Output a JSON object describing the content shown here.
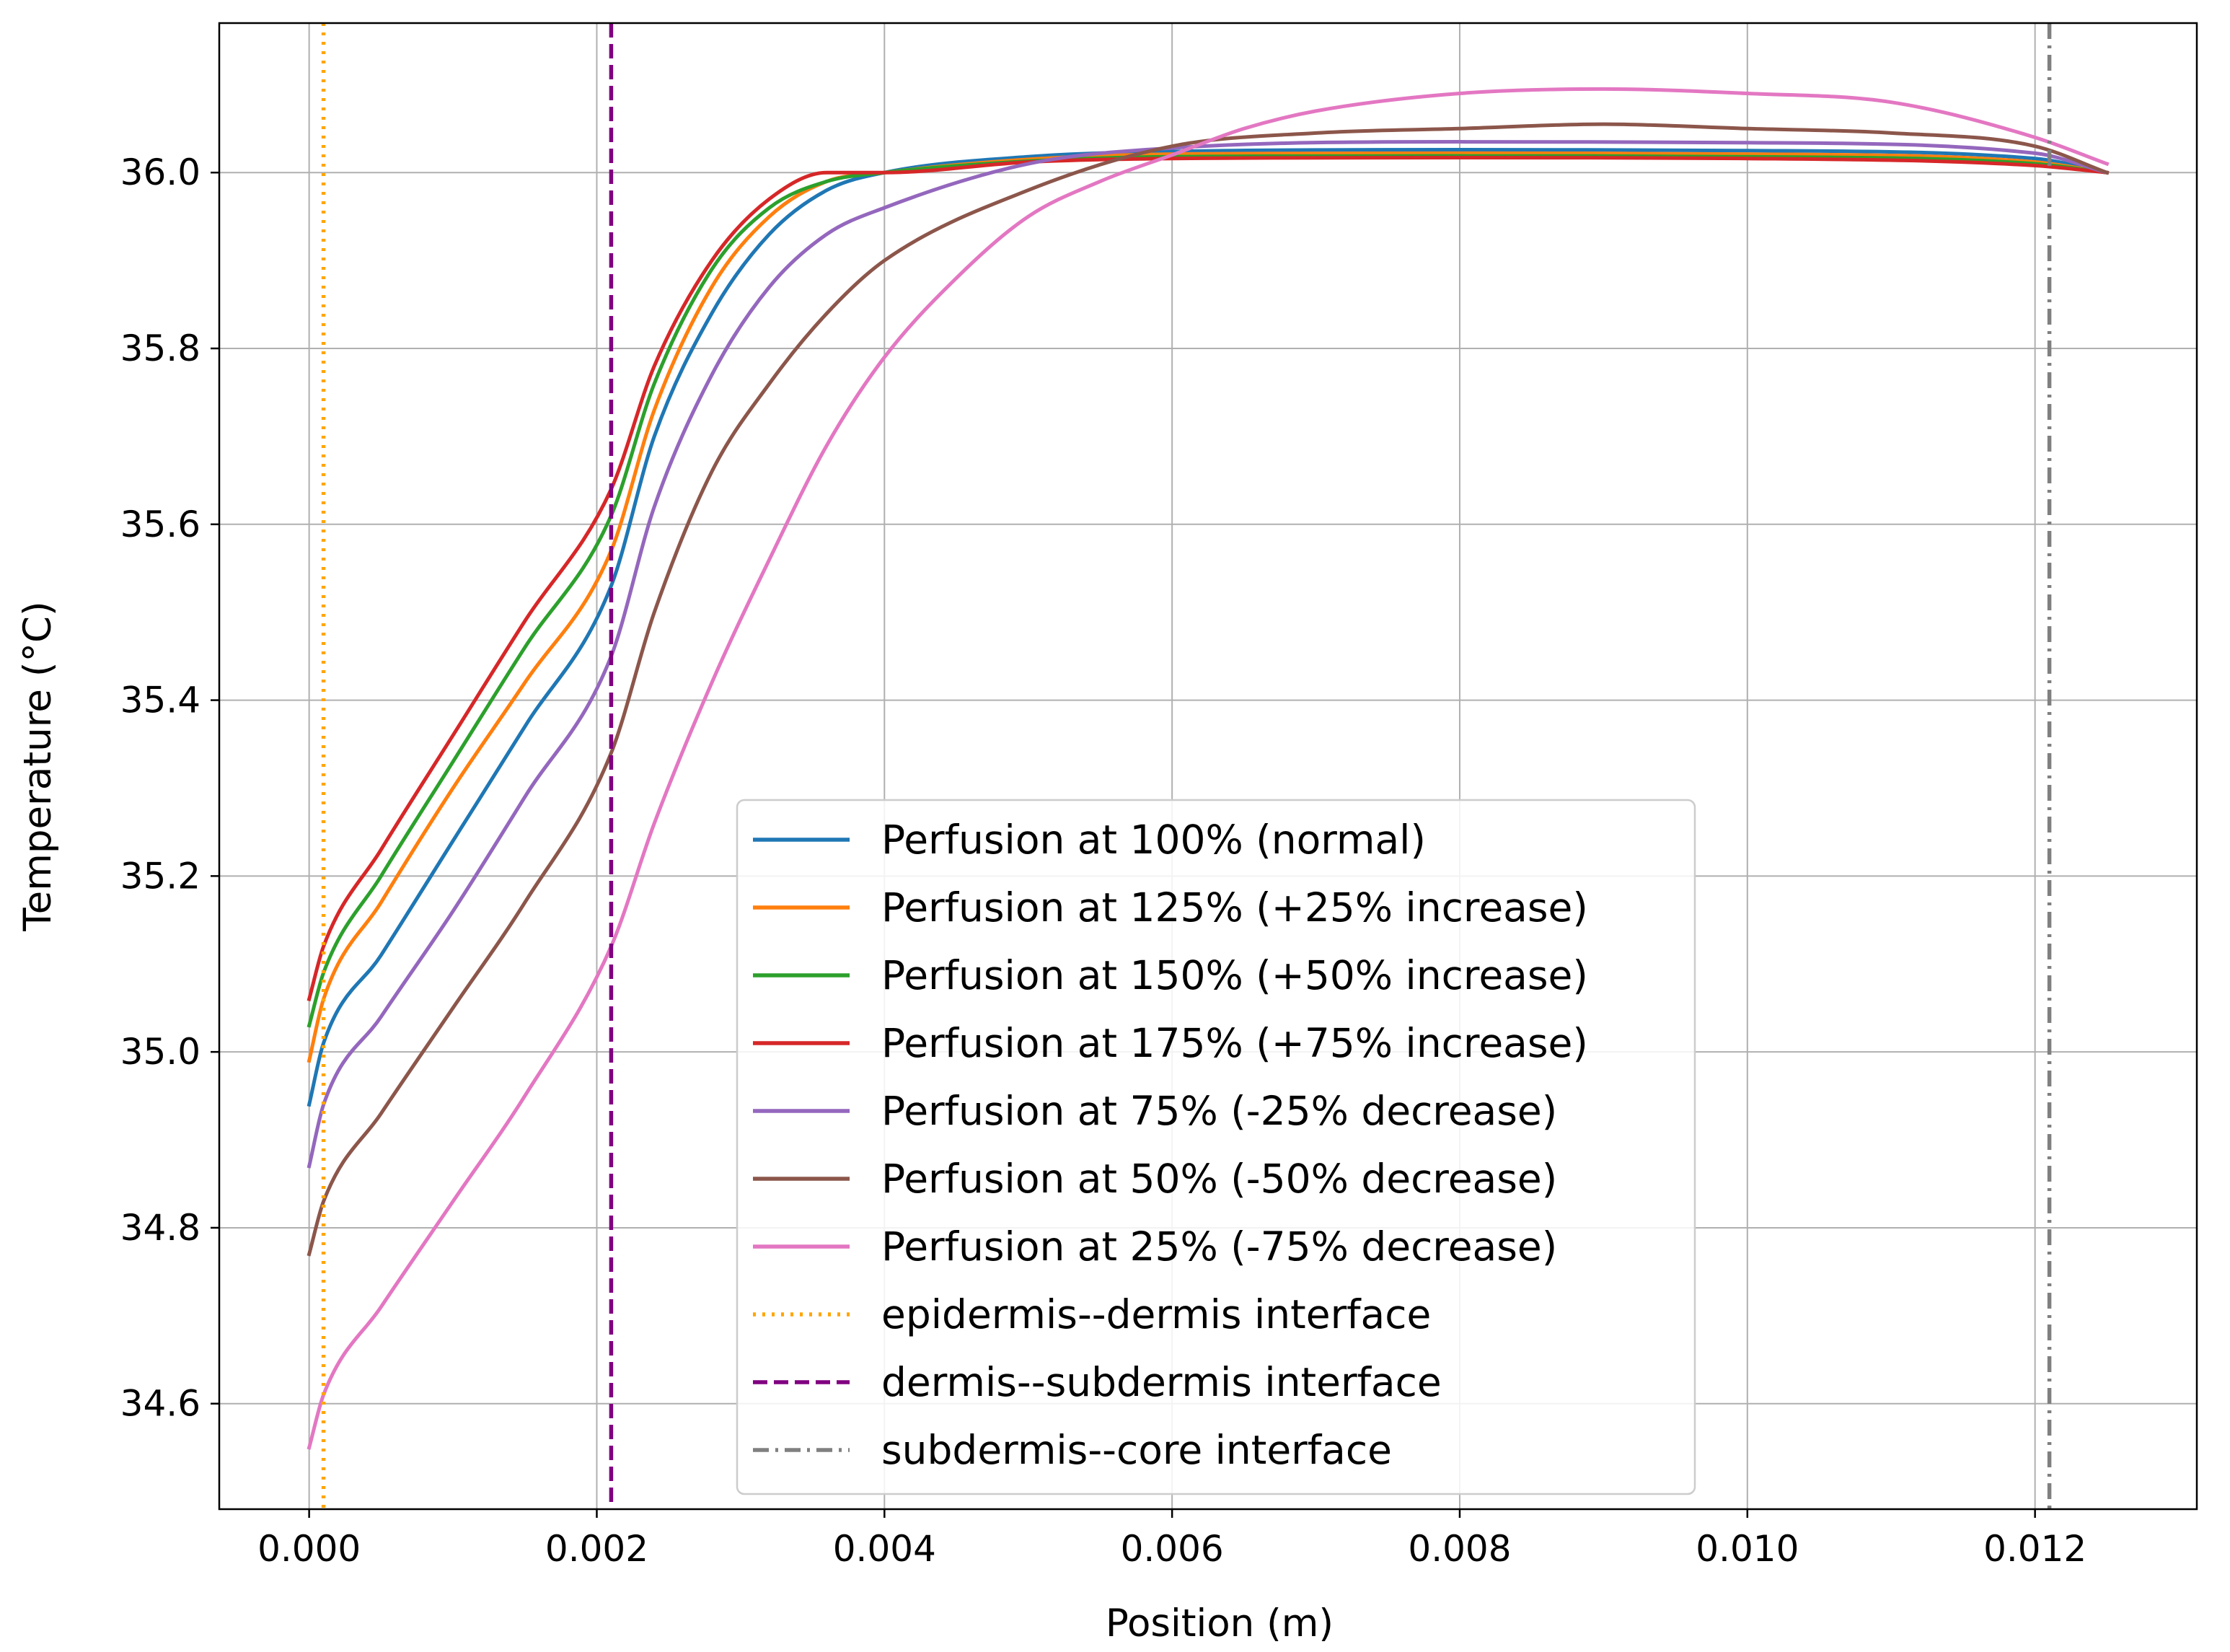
{
  "chart_data": {
    "type": "line",
    "title": "",
    "xlabel": "Position (m)",
    "ylabel": "Temperature (°C)",
    "xlim": [
      -0.000625,
      0.013125
    ],
    "ylim": [
      34.48,
      36.17
    ],
    "grid": true,
    "legend_position": "lower-center",
    "x_ticks": [
      {
        "value": 0.0,
        "label": "0.000"
      },
      {
        "value": 0.002,
        "label": "0.002"
      },
      {
        "value": 0.004,
        "label": "0.004"
      },
      {
        "value": 0.006,
        "label": "0.006"
      },
      {
        "value": 0.008,
        "label": "0.008"
      },
      {
        "value": 0.01,
        "label": "0.010"
      },
      {
        "value": 0.012,
        "label": "0.012"
      }
    ],
    "y_ticks": [
      {
        "value": 34.6,
        "label": "34.6"
      },
      {
        "value": 34.8,
        "label": "34.8"
      },
      {
        "value": 35.0,
        "label": "35.0"
      },
      {
        "value": 35.2,
        "label": "35.2"
      },
      {
        "value": 35.4,
        "label": "35.4"
      },
      {
        "value": 35.6,
        "label": "35.6"
      },
      {
        "value": 35.8,
        "label": "35.8"
      },
      {
        "value": 36.0,
        "label": "36.0"
      }
    ],
    "series": [
      {
        "name": "Perfusion at 100% (normal)",
        "color": "#1f77b4",
        "dash": "solid",
        "x": [
          0,
          0.0001,
          0.0005,
          0.001,
          0.0015,
          0.0021,
          0.0024,
          0.0028,
          0.0032,
          0.0036,
          0.004,
          0.005,
          0.006,
          0.008,
          0.01,
          0.012,
          0.0125
        ],
        "y": [
          34.94,
          35.01,
          35.11,
          35.24,
          35.37,
          35.53,
          35.7,
          35.84,
          35.93,
          35.98,
          36.0,
          36.018,
          36.024,
          36.026,
          36.025,
          36.016,
          36.0
        ]
      },
      {
        "name": "Perfusion at 125% (+25% increase)",
        "color": "#ff7f0e",
        "dash": "solid",
        "x": [
          0,
          0.0001,
          0.0005,
          0.001,
          0.0015,
          0.0021,
          0.0024,
          0.0028,
          0.0032,
          0.0036,
          0.004,
          0.005,
          0.006,
          0.008,
          0.01,
          0.012,
          0.0125
        ],
        "y": [
          34.99,
          35.06,
          35.17,
          35.3,
          35.42,
          35.57,
          35.73,
          35.87,
          35.95,
          35.99,
          36.0,
          36.015,
          36.021,
          36.022,
          36.021,
          36.012,
          36.0
        ]
      },
      {
        "name": "Perfusion at 150% (+50% increase)",
        "color": "#2ca02c",
        "dash": "solid",
        "x": [
          0,
          0.0001,
          0.0005,
          0.001,
          0.0015,
          0.0021,
          0.0024,
          0.0028,
          0.0032,
          0.0036,
          0.004,
          0.005,
          0.006,
          0.008,
          0.01,
          0.012,
          0.0125
        ],
        "y": [
          35.03,
          35.09,
          35.2,
          35.33,
          35.46,
          35.61,
          35.76,
          35.89,
          35.96,
          35.99,
          36.0,
          36.013,
          36.018,
          36.019,
          36.018,
          36.01,
          36.0
        ]
      },
      {
        "name": "Perfusion at 175% (+75% increase)",
        "color": "#d62728",
        "dash": "solid",
        "x": [
          0,
          0.0001,
          0.0005,
          0.001,
          0.0015,
          0.0021,
          0.0024,
          0.0028,
          0.0032,
          0.0036,
          0.004,
          0.005,
          0.006,
          0.008,
          0.01,
          0.012,
          0.0125
        ],
        "y": [
          35.06,
          35.12,
          35.23,
          35.36,
          35.49,
          35.64,
          35.78,
          35.9,
          35.97,
          36.0,
          36.0,
          36.012,
          36.016,
          36.017,
          36.016,
          36.008,
          36.0
        ]
      },
      {
        "name": "Perfusion at 75% (-25% decrease)",
        "color": "#9467bd",
        "dash": "solid",
        "x": [
          0,
          0.0001,
          0.0005,
          0.001,
          0.0015,
          0.0021,
          0.0024,
          0.0028,
          0.0032,
          0.0036,
          0.004,
          0.005,
          0.006,
          0.008,
          0.01,
          0.012,
          0.0125
        ],
        "y": [
          34.87,
          34.94,
          35.04,
          35.16,
          35.29,
          35.45,
          35.62,
          35.77,
          35.87,
          35.93,
          35.96,
          36.01,
          36.028,
          36.035,
          36.034,
          36.022,
          36.0
        ]
      },
      {
        "name": "Perfusion at 50% (-50% decrease)",
        "color": "#8c564b",
        "dash": "solid",
        "x": [
          0,
          0.0001,
          0.0005,
          0.001,
          0.0015,
          0.0021,
          0.0024,
          0.0028,
          0.0032,
          0.0036,
          0.004,
          0.005,
          0.006,
          0.007,
          0.008,
          0.009,
          0.01,
          0.011,
          0.012,
          0.0125
        ],
        "y": [
          34.77,
          34.83,
          34.93,
          35.05,
          35.17,
          35.34,
          35.5,
          35.66,
          35.76,
          35.84,
          35.9,
          35.98,
          36.03,
          36.045,
          36.05,
          36.055,
          36.05,
          36.045,
          36.03,
          36.0
        ]
      },
      {
        "name": "Perfusion at 25% (-75% decrease)",
        "color": "#e377c2",
        "dash": "solid",
        "x": [
          0,
          0.0001,
          0.0005,
          0.001,
          0.0015,
          0.0021,
          0.0024,
          0.0028,
          0.0032,
          0.0036,
          0.004,
          0.0045,
          0.005,
          0.0055,
          0.006,
          0.0065,
          0.007,
          0.008,
          0.009,
          0.01,
          0.011,
          0.012,
          0.0125
        ],
        "y": [
          34.55,
          34.61,
          34.71,
          34.83,
          34.95,
          35.12,
          35.26,
          35.42,
          35.56,
          35.69,
          35.79,
          35.88,
          35.95,
          35.99,
          36.02,
          36.05,
          36.07,
          36.09,
          36.095,
          36.09,
          36.08,
          36.04,
          36.01
        ]
      }
    ],
    "vlines": [
      {
        "name": "epidermis--dermis interface",
        "x": 0.0001,
        "color": "#ffa500",
        "dash": "dotted"
      },
      {
        "name": "dermis--subdermis interface",
        "x": 0.0021,
        "color": "#800080",
        "dash": "dashed"
      },
      {
        "name": "subdermis--core interface",
        "x": 0.0121,
        "color": "#808080",
        "dash": "dashdot"
      }
    ]
  }
}
